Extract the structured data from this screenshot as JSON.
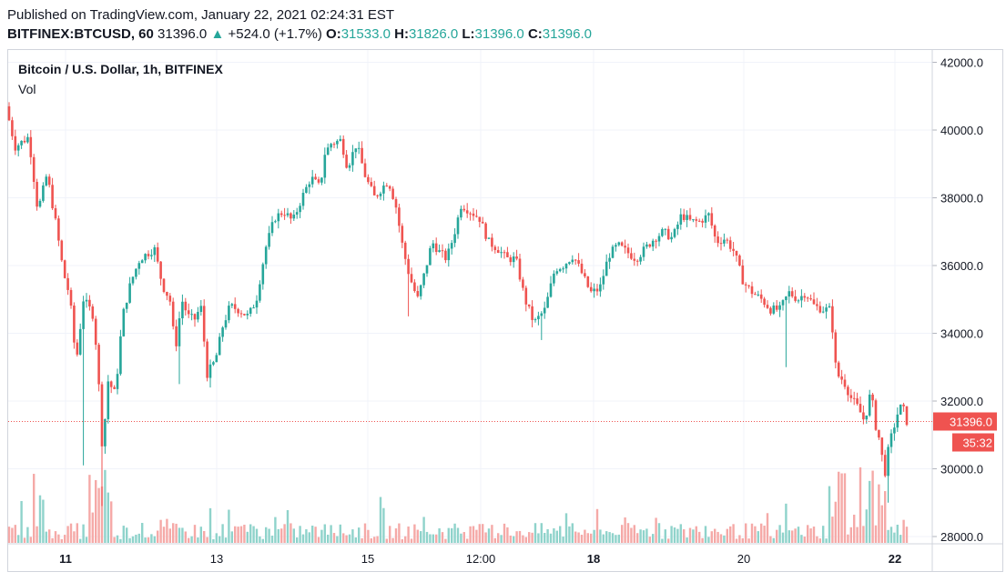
{
  "header": {
    "published": "Published on TradingView.com, January 22, 2021 02:24:31 EST",
    "symbol": "BITFINEX:BTCUSD, 60",
    "last": "31396.0",
    "change_arrow": "▲",
    "change": "+524.0 (+1.7%)",
    "o_label": "O:",
    "o_value": "31533.0",
    "h_label": "H:",
    "h_value": "31826.0",
    "l_label": "L:",
    "l_value": "31396.0",
    "c_label": "C:",
    "c_value": "31396.0"
  },
  "legend": {
    "title": "Bitcoin / U.S. Dollar, 1h, BITFINEX",
    "volume_label": "Vol"
  },
  "price_tag": {
    "price": "31396.0",
    "countdown": "35:32"
  },
  "colors": {
    "up": "#26a69a",
    "down": "#ef5350",
    "vol_up": "#8fd3cb",
    "vol_down": "#f5a9a7",
    "grid": "#f0f3fa"
  },
  "chart_data": {
    "type": "candlestick",
    "y_axis": {
      "ticks": [
        28000,
        30000,
        32000,
        34000,
        36000,
        38000,
        40000,
        42000
      ],
      "tick_labels": [
        "28000.0",
        "30000.0",
        "32000.0",
        "34000.0",
        "36000.0",
        "38000.0",
        "40000.0",
        "42000.0"
      ],
      "range": [
        27700,
        42600
      ]
    },
    "x_axis": {
      "tick_labels": [
        "11",
        "13",
        "15",
        "12:00",
        "18",
        "20",
        "22"
      ],
      "bold_labels": [
        "11",
        "18",
        "22"
      ]
    },
    "last_price": 31396.0,
    "grid": true,
    "price_path": [
      [
        0,
        40700
      ],
      [
        10,
        39500
      ],
      [
        25,
        39800
      ],
      [
        35,
        37600
      ],
      [
        45,
        38700
      ],
      [
        55,
        37200
      ],
      [
        63,
        35800
      ],
      [
        70,
        35100
      ],
      [
        77,
        33100
      ],
      [
        85,
        35000
      ],
      [
        95,
        34600
      ],
      [
        100,
        33400
      ],
      [
        106,
        30500
      ],
      [
        112,
        32600
      ],
      [
        120,
        32200
      ],
      [
        128,
        34500
      ],
      [
        137,
        35500
      ],
      [
        147,
        36200
      ],
      [
        163,
        36500
      ],
      [
        172,
        35400
      ],
      [
        180,
        35000
      ],
      [
        186,
        33500
      ],
      [
        193,
        35000
      ],
      [
        200,
        34500
      ],
      [
        207,
        34400
      ],
      [
        214,
        34800
      ],
      [
        221,
        32800
      ],
      [
        230,
        33200
      ],
      [
        238,
        34200
      ],
      [
        246,
        34800
      ],
      [
        255,
        34700
      ],
      [
        266,
        34500
      ],
      [
        275,
        35000
      ],
      [
        285,
        36500
      ],
      [
        295,
        37400
      ],
      [
        305,
        37600
      ],
      [
        315,
        37300
      ],
      [
        325,
        38000
      ],
      [
        335,
        38600
      ],
      [
        345,
        38300
      ],
      [
        350,
        39300
      ],
      [
        357,
        39600
      ],
      [
        368,
        39700
      ],
      [
        375,
        38900
      ],
      [
        385,
        39600
      ],
      [
        395,
        38600
      ],
      [
        405,
        38000
      ],
      [
        413,
        38300
      ],
      [
        420,
        38500
      ],
      [
        428,
        37800
      ],
      [
        436,
        36500
      ],
      [
        443,
        35700
      ],
      [
        452,
        35000
      ],
      [
        460,
        35800
      ],
      [
        468,
        36700
      ],
      [
        476,
        36400
      ],
      [
        484,
        36200
      ],
      [
        492,
        36900
      ],
      [
        500,
        37800
      ],
      [
        510,
        37600
      ],
      [
        520,
        37400
      ],
      [
        530,
        36700
      ],
      [
        540,
        36500
      ],
      [
        550,
        36200
      ],
      [
        560,
        36200
      ],
      [
        570,
        35000
      ],
      [
        580,
        34300
      ],
      [
        592,
        34700
      ],
      [
        603,
        35900
      ],
      [
        612,
        36000
      ],
      [
        623,
        36300
      ],
      [
        632,
        35800
      ],
      [
        642,
        35200
      ],
      [
        652,
        35300
      ],
      [
        662,
        36300
      ],
      [
        672,
        36600
      ],
      [
        682,
        36400
      ],
      [
        692,
        36200
      ],
      [
        702,
        36500
      ],
      [
        712,
        36800
      ],
      [
        722,
        37000
      ],
      [
        732,
        36800
      ],
      [
        742,
        37500
      ],
      [
        752,
        37300
      ],
      [
        762,
        37300
      ],
      [
        772,
        37500
      ],
      [
        780,
        36700
      ],
      [
        790,
        36800
      ],
      [
        800,
        36400
      ],
      [
        810,
        35500
      ],
      [
        820,
        35200
      ],
      [
        830,
        35000
      ],
      [
        840,
        34700
      ],
      [
        850,
        34700
      ],
      [
        860,
        35200
      ],
      [
        870,
        35000
      ],
      [
        878,
        35200
      ],
      [
        888,
        34800
      ],
      [
        898,
        34700
      ],
      [
        906,
        34700
      ],
      [
        912,
        32800
      ],
      [
        920,
        32600
      ],
      [
        928,
        32100
      ],
      [
        936,
        31800
      ],
      [
        943,
        31400
      ],
      [
        950,
        32300
      ],
      [
        955,
        31300
      ],
      [
        960,
        30800
      ],
      [
        965,
        29800
      ],
      [
        970,
        30700
      ],
      [
        975,
        31200
      ],
      [
        980,
        31700
      ],
      [
        985,
        31900
      ],
      [
        988,
        31400
      ]
    ]
  }
}
